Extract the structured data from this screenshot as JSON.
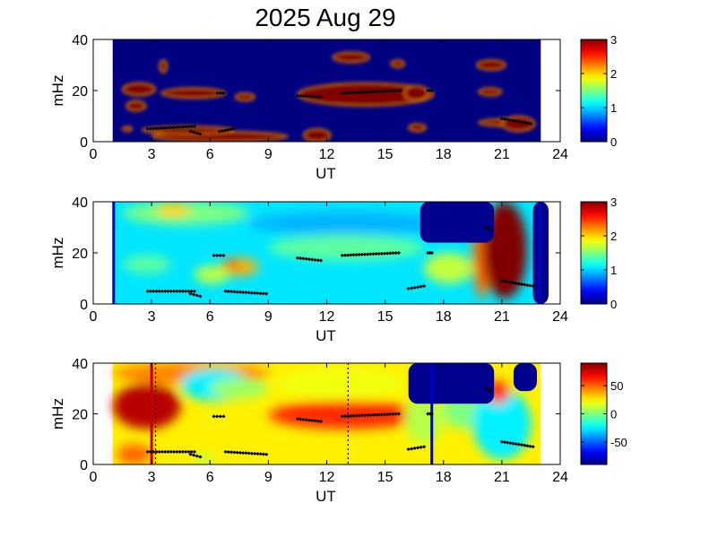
{
  "chart_data": {
    "type": "heatmap",
    "title": "2025 Aug 29",
    "colormap": "jet",
    "panels": [
      {
        "ylabel": "mHz",
        "xlabel": "UT",
        "xlim": [
          0,
          24
        ],
        "ylim": [
          0,
          40
        ],
        "xticks": [
          "0",
          "3",
          "6",
          "9",
          "12",
          "15",
          "18",
          "21",
          "24"
        ],
        "yticks": [
          "0",
          "20",
          "40"
        ],
        "data_x_range": [
          1,
          23
        ],
        "colorbar": {
          "range": [
            0,
            3
          ],
          "ticks": [
            "0",
            "1",
            "2",
            "3"
          ]
        },
        "background_value": 0,
        "blobs": [
          {
            "x": [
              3,
              10
            ],
            "y": [
              0,
              4
            ],
            "v": 3
          },
          {
            "x": [
              2.5,
              7.2
            ],
            "y": [
              3,
              6
            ],
            "v": 3
          },
          {
            "x": [
              10.8,
              12.2
            ],
            "y": [
              0,
              5
            ],
            "v": 3
          },
          {
            "x": [
              16.2,
              17.1
            ],
            "y": [
              4,
              7
            ],
            "v": 3
          },
          {
            "x": [
              3.5,
              6.8
            ],
            "y": [
              17,
              21
            ],
            "v": 3
          },
          {
            "x": [
              7.3,
              8.3
            ],
            "y": [
              16,
              19
            ],
            "v": 3
          },
          {
            "x": [
              10.5,
              17.5
            ],
            "y": [
              14,
              23
            ],
            "v": 3
          },
          {
            "x": [
              16,
              17.2
            ],
            "y": [
              16,
              22
            ],
            "v": 3
          },
          {
            "x": [
              1.5,
              3.2
            ],
            "y": [
              18,
              23
            ],
            "v": 3
          },
          {
            "x": [
              1.7,
              2.7
            ],
            "y": [
              12,
              16
            ],
            "v": 3
          },
          {
            "x": [
              12.3,
              14.2
            ],
            "y": [
              31,
              35
            ],
            "v": 3
          },
          {
            "x": [
              15.3,
              16
            ],
            "y": [
              29,
              32
            ],
            "v": 3
          },
          {
            "x": [
              3.4,
              3.8
            ],
            "y": [
              27,
              32
            ],
            "v": 3
          },
          {
            "x": [
              19.7,
              21.2
            ],
            "y": [
              28,
              32
            ],
            "v": 3
          },
          {
            "x": [
              19.8,
              21
            ],
            "y": [
              18,
              21
            ],
            "v": 3
          },
          {
            "x": [
              19.8,
              22.7
            ],
            "y": [
              6,
              9
            ],
            "v": 3
          },
          {
            "x": [
              21,
              22.7
            ],
            "y": [
              4,
              10
            ],
            "v": 3
          },
          {
            "x": [
              1.5,
              2
            ],
            "y": [
              4,
              6
            ],
            "v": 3
          }
        ],
        "markers": [
          {
            "x": [
              2.8,
              5.2
            ],
            "y": [
              5,
              6
            ]
          },
          {
            "x": [
              5,
              5.5
            ],
            "y": [
              4,
              3
            ]
          },
          {
            "x": [
              6.4,
              6.7
            ],
            "y": [
              19,
              19
            ]
          },
          {
            "x": [
              6.5,
              7.2
            ],
            "y": [
              4,
              5
            ]
          },
          {
            "x": [
              10.5,
              11.7
            ],
            "y": [
              18,
              17.5
            ]
          },
          {
            "x": [
              12.8,
              15.8
            ],
            "y": [
              19,
              20
            ]
          },
          {
            "x": [
              17.2,
              17.4
            ],
            "y": [
              20,
              20
            ]
          },
          {
            "x": [
              21,
              22.5
            ],
            "y": [
              9,
              7
            ]
          }
        ]
      },
      {
        "ylabel": "mHz",
        "xlabel": "UT",
        "xlim": [
          0,
          24
        ],
        "ylim": [
          0,
          40
        ],
        "xticks": [
          "0",
          "3",
          "6",
          "9",
          "12",
          "15",
          "18",
          "21",
          "24"
        ],
        "yticks": [
          "0",
          "20",
          "40"
        ],
        "data_x_range": [
          1,
          23
        ],
        "colorbar": {
          "range": [
            0,
            3
          ],
          "ticks": [
            "0",
            "1",
            "2",
            "3"
          ]
        },
        "background_value": 1.05,
        "blobs": [
          {
            "x": [
              1.5,
              8
            ],
            "y": [
              31,
              40
            ],
            "v": 1.5
          },
          {
            "x": [
              3.2,
              5
            ],
            "y": [
              34,
              40
            ],
            "v": 2
          },
          {
            "x": [
              1.5,
              4
            ],
            "y": [
              12,
              19
            ],
            "v": 1.4
          },
          {
            "x": [
              6.5,
              8.5
            ],
            "y": [
              11,
              18
            ],
            "v": 2.1
          },
          {
            "x": [
              6.7,
              7.5
            ],
            "y": [
              14,
              17
            ],
            "v": 2.5
          },
          {
            "x": [
              5.2,
              7
            ],
            "y": [
              8,
              15
            ],
            "v": 1.7
          },
          {
            "x": [
              9,
              17
            ],
            "y": [
              17,
              27
            ],
            "v": 1.4
          },
          {
            "x": [
              8,
              18
            ],
            "y": [
              27,
              36
            ],
            "v": 0.9
          },
          {
            "x": [
              17,
              19.5
            ],
            "y": [
              8,
              20
            ],
            "v": 1.7
          },
          {
            "x": [
              19.5,
              20.4
            ],
            "y": [
              2,
              40
            ],
            "v": 2.3
          },
          {
            "x": [
              20,
              22.3
            ],
            "y": [
              2,
              40
            ],
            "v": 3
          }
        ],
        "masks": [
          {
            "x": [
              16.8,
              20.6
            ],
            "y": [
              24,
              40
            ]
          },
          {
            "x": [
              22.6,
              23.4
            ],
            "y": [
              0,
              40
            ]
          }
        ],
        "markers": [
          {
            "x": [
              2.8,
              5.2
            ],
            "y": [
              5,
              5
            ]
          },
          {
            "x": [
              5,
              5.5
            ],
            "y": [
              4,
              3
            ]
          },
          {
            "x": [
              6.2,
              6.7
            ],
            "y": [
              19,
              19
            ]
          },
          {
            "x": [
              6.8,
              8.9
            ],
            "y": [
              5,
              4
            ]
          },
          {
            "x": [
              10.5,
              11.7
            ],
            "y": [
              18,
              17
            ]
          },
          {
            "x": [
              12.8,
              15.7
            ],
            "y": [
              19,
              20
            ]
          },
          {
            "x": [
              16.2,
              17
            ],
            "y": [
              6,
              7
            ]
          },
          {
            "x": [
              17.2,
              17.4
            ],
            "y": [
              20,
              20
            ]
          },
          {
            "x": [
              20.2,
              20.4
            ],
            "y": [
              30,
              29
            ]
          },
          {
            "x": [
              21,
              22.6
            ],
            "y": [
              9,
              7
            ]
          }
        ],
        "vlines": [
          {
            "x": 1.05,
            "color": "#0000c0"
          },
          {
            "x": 22.95,
            "color": "#0000c0"
          }
        ]
      },
      {
        "ylabel": "mHz",
        "xlabel": "UT",
        "xlim": [
          0,
          24
        ],
        "ylim": [
          0,
          40
        ],
        "xticks": [
          "0",
          "3",
          "6",
          "9",
          "12",
          "15",
          "18",
          "21",
          "24"
        ],
        "yticks": [
          "0",
          "20",
          "40"
        ],
        "data_x_range": [
          1,
          23
        ],
        "colorbar": {
          "range": [
            -90,
            90
          ],
          "ticks": [
            "50",
            "0",
            "-50"
          ],
          "tick_values": [
            50,
            0,
            -50
          ]
        },
        "background_value": 25,
        "blobs": [
          {
            "x": [
              1,
              4.5
            ],
            "y": [
              14,
              32
            ],
            "v": 80
          },
          {
            "x": [
              1,
              9
            ],
            "y": [
              32,
              40
            ],
            "v": 45
          },
          {
            "x": [
              4.5,
              8
            ],
            "y": [
              25,
              38
            ],
            "v": -25
          },
          {
            "x": [
              6,
              9
            ],
            "y": [
              26,
              34
            ],
            "v": 5
          },
          {
            "x": [
              9,
              17
            ],
            "y": [
              14,
              25
            ],
            "v": 60
          },
          {
            "x": [
              9.5,
              16
            ],
            "y": [
              26,
              38
            ],
            "v": 20
          },
          {
            "x": [
              16,
              18
            ],
            "y": [
              8,
              28
            ],
            "v": 10
          },
          {
            "x": [
              18,
              20
            ],
            "y": [
              14,
              30
            ],
            "v": 0
          },
          {
            "x": [
              19.5,
              22.5
            ],
            "y": [
              2,
              30
            ],
            "v": -25
          },
          {
            "x": [
              20.2,
              21.4
            ],
            "y": [
              24,
              33
            ],
            "v": 60
          },
          {
            "x": [
              5.2,
              6.2
            ],
            "y": [
              0,
              4
            ],
            "v": 10
          },
          {
            "x": [
              1.2,
              3
            ],
            "y": [
              0,
              8
            ],
            "v": 50
          }
        ],
        "masks": [
          {
            "x": [
              16.2,
              20.6
            ],
            "y": [
              24,
              40
            ]
          },
          {
            "x": [
              21.6,
              22.8
            ],
            "y": [
              29,
              40
            ]
          }
        ],
        "markers": [
          {
            "x": [
              2.8,
              5.2
            ],
            "y": [
              5,
              5
            ]
          },
          {
            "x": [
              5,
              5.5
            ],
            "y": [
              4,
              3
            ]
          },
          {
            "x": [
              6.2,
              6.7
            ],
            "y": [
              19,
              19
            ]
          },
          {
            "x": [
              6.8,
              8.9
            ],
            "y": [
              5,
              4
            ]
          },
          {
            "x": [
              10.5,
              11.7
            ],
            "y": [
              18,
              17
            ]
          },
          {
            "x": [
              12.8,
              15.7
            ],
            "y": [
              19,
              20
            ]
          },
          {
            "x": [
              16.2,
              17
            ],
            "y": [
              6,
              7
            ]
          },
          {
            "x": [
              17.2,
              17.4
            ],
            "y": [
              20,
              20
            ]
          },
          {
            "x": [
              20.2,
              20.4
            ],
            "y": [
              30,
              29
            ]
          },
          {
            "x": [
              21,
              22.6
            ],
            "y": [
              9,
              7
            ]
          }
        ],
        "vlines": [
          {
            "x": 3,
            "color": "#c00000"
          },
          {
            "x": 17.4,
            "color": "#0000d0"
          }
        ],
        "dashed_vlines": [
          {
            "x": 13.1,
            "color": "#000000"
          },
          {
            "x": 3.2,
            "color": "#000000"
          }
        ]
      }
    ]
  }
}
